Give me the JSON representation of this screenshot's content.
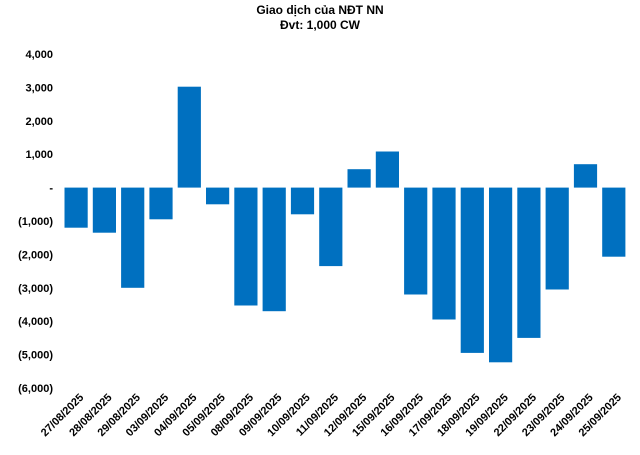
{
  "chart_data": {
    "type": "bar",
    "title": "Giao dịch của NĐT NN",
    "subtitle": "Đvt: 1,000 CW",
    "xlabel": "",
    "ylabel": "",
    "ylim": [
      -6000,
      4000
    ],
    "y_ticks": [
      4000,
      3000,
      2000,
      1000,
      0,
      -1000,
      -2000,
      -3000,
      -4000,
      -5000,
      -6000
    ],
    "y_tick_labels": [
      "4,000",
      "3,000",
      "2,000",
      "1,000",
      "-",
      "(1,000)",
      "(2,000)",
      "(3,000)",
      "(4,000)",
      "(5,000)",
      "(6,000)"
    ],
    "grid": false,
    "legend": "none",
    "bar_color": "#0070C0",
    "categories": [
      "27/08/2025",
      "28/08/2025",
      "29/08/2025",
      "03/09/2025",
      "04/09/2025",
      "05/09/2025",
      "08/09/2025",
      "09/09/2025",
      "10/09/2025",
      "11/09/2025",
      "12/09/2025",
      "15/09/2025",
      "16/09/2025",
      "17/09/2025",
      "18/09/2025",
      "19/09/2025",
      "22/09/2025",
      "23/09/2025",
      "24/09/2025",
      "25/09/2025"
    ],
    "values": [
      -1200,
      -1350,
      -3000,
      -950,
      3020,
      -500,
      -3530,
      -3700,
      -800,
      -2350,
      550,
      1080,
      -3200,
      -3950,
      -4950,
      -5230,
      -4500,
      -3050,
      700,
      -2070
    ]
  }
}
